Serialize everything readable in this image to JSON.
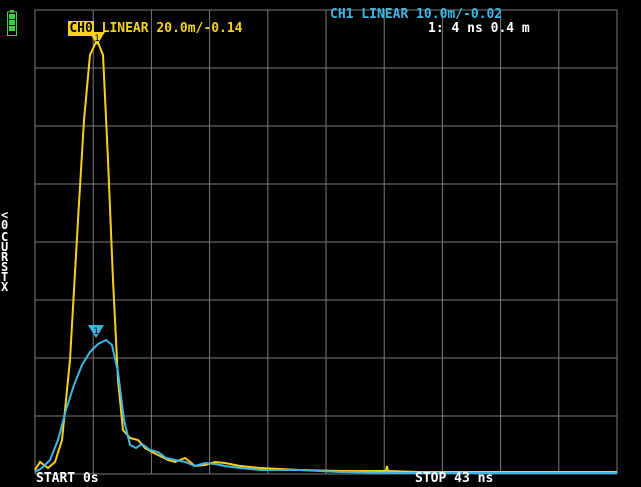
{
  "header": {
    "ch0_tag": "CH0",
    "ch0_info": " LINEAR 20.0m/-0.14",
    "ch1_info": "CH1 LINEAR 10.0m/-0.02",
    "marker_readout": "1: 4 ns 0.4 m"
  },
  "side_menu_label": "<0\nCURSTX",
  "footer": {
    "start": "START 0s",
    "stop": "STOP 43 ns"
  },
  "markers": {
    "ch0": "1",
    "ch1": "1"
  },
  "icons": {
    "battery": "battery-icon"
  },
  "colors": {
    "ch0": "#f7d21c",
    "ch1": "#3fb7e6",
    "grid": "#7a7a7a",
    "background": "#000000"
  }
}
